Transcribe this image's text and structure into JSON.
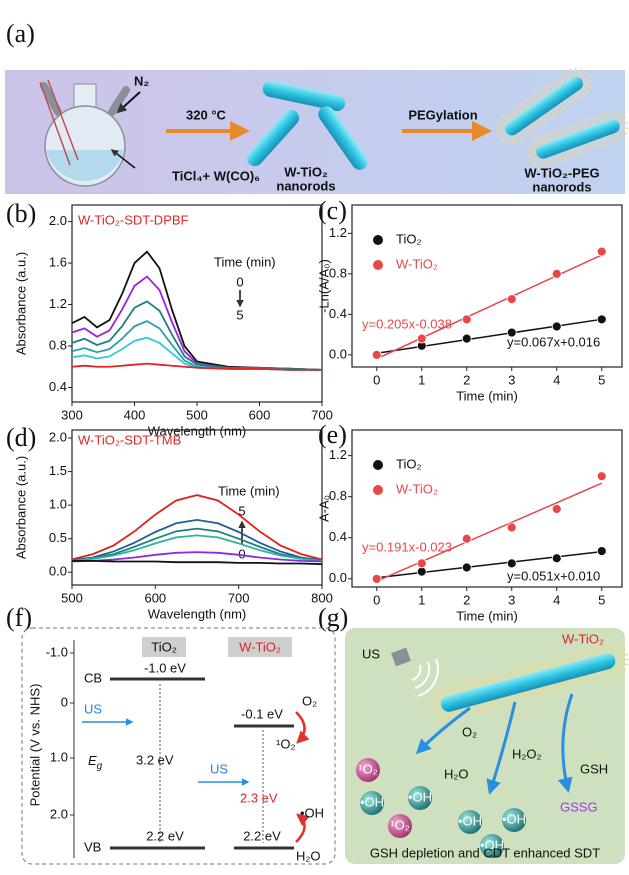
{
  "panel_labels": [
    "(a)",
    "(b)",
    "(c)",
    "(d)",
    "(e)",
    "(f)",
    "(g)"
  ],
  "panel_a": {
    "gas": "N₂",
    "reagents": "TiCl₄+ W(CO)₆",
    "step1": "320 °C",
    "product1": [
      "W-TiO₂",
      "nanorods"
    ],
    "step2": "PEGylation",
    "product2": [
      "W-TiO₂-PEG",
      "nanorods"
    ]
  },
  "chart_data": [
    {
      "type": "line",
      "title": "W-TiO₂-SDT-DPBF",
      "time_label": "Time (min)",
      "time_start": "0",
      "time_end": "5",
      "x_label": "Wavelength (nm)",
      "y_label": "Absorbance (a.u.)",
      "x": [
        300,
        320,
        340,
        360,
        380,
        400,
        420,
        440,
        460,
        480,
        500,
        550,
        600,
        650,
        700
      ],
      "series": [
        {
          "color": "#111111",
          "values": [
            1.02,
            1.08,
            0.98,
            1.05,
            1.3,
            1.6,
            1.71,
            1.55,
            1.15,
            0.8,
            0.65,
            0.6,
            0.59,
            0.58,
            0.57
          ]
        },
        {
          "color": "#9b22e0",
          "values": [
            0.93,
            0.97,
            0.89,
            0.95,
            1.15,
            1.38,
            1.47,
            1.34,
            1.03,
            0.75,
            0.63,
            0.59,
            0.59,
            0.58,
            0.57
          ]
        },
        {
          "color": "#1f7f7a",
          "values": [
            0.83,
            0.87,
            0.81,
            0.85,
            0.99,
            1.17,
            1.23,
            1.14,
            0.91,
            0.7,
            0.62,
            0.59,
            0.58,
            0.58,
            0.57
          ]
        },
        {
          "color": "#2a9fae",
          "values": [
            0.75,
            0.78,
            0.74,
            0.77,
            0.87,
            0.99,
            1.04,
            0.97,
            0.81,
            0.66,
            0.6,
            0.58,
            0.58,
            0.57,
            0.57
          ]
        },
        {
          "color": "#33c8d8",
          "values": [
            0.69,
            0.71,
            0.68,
            0.7,
            0.77,
            0.85,
            0.88,
            0.83,
            0.73,
            0.63,
            0.59,
            0.58,
            0.58,
            0.57,
            0.57
          ]
        },
        {
          "color": "#e02424",
          "values": [
            0.6,
            0.61,
            0.6,
            0.6,
            0.61,
            0.62,
            0.63,
            0.62,
            0.61,
            0.6,
            0.59,
            0.58,
            0.58,
            0.57,
            0.57
          ]
        }
      ],
      "xlim": [
        300,
        700
      ],
      "xticks": [
        300,
        400,
        500,
        600,
        700
      ],
      "ylim": [
        0.26,
        2.16
      ],
      "yticks": [
        0.4,
        0.8,
        1.2,
        1.6,
        {
          "value": 2,
          "label": "2.0"
        }
      ]
    },
    {
      "type": "scatter",
      "x_label": "Time (min)",
      "y_label": "-Ln(A/A₀)",
      "x": [
        0,
        1,
        2,
        3,
        4,
        5
      ],
      "series": [
        {
          "name": "TiO₂",
          "color": "#111111",
          "values": [
            0,
            0.09,
            0.16,
            0.22,
            0.28,
            0.35
          ],
          "fit": {
            "slope": 0.067,
            "intercept": 0.016
          },
          "fit_label": "y=0.067x+0.016"
        },
        {
          "name": "W-TiO₂",
          "color": "#e8474a",
          "values": [
            0,
            0.16,
            0.35,
            0.55,
            0.8,
            1.02
          ],
          "fit": {
            "slope": 0.205,
            "intercept": -0.038
          },
          "fit_label": "y=0.205x-0.038"
        }
      ],
      "xlim": [
        -0.55,
        5.45
      ],
      "xticks": [
        0,
        1,
        2,
        3,
        4,
        5
      ],
      "ylim": [
        -0.12,
        1.48
      ],
      "yticks": [
        {
          "value": 0,
          "label": "0.0"
        },
        0.4,
        0.8,
        1.2
      ]
    },
    {
      "type": "line",
      "title": "W-TiO₂-SDT-TMB",
      "time_label": "Time (min)",
      "time_start": "0",
      "time_end": "5",
      "x_label": "Wavelength (nm)",
      "y_label": "Absorbance (a.u.)",
      "x": [
        500,
        525,
        550,
        575,
        600,
        625,
        650,
        675,
        700,
        725,
        750,
        775,
        800
      ],
      "series": [
        {
          "color": "#e0201a",
          "values": [
            0.19,
            0.27,
            0.4,
            0.61,
            0.86,
            1.07,
            1.15,
            1.07,
            0.86,
            0.61,
            0.4,
            0.27,
            0.19
          ]
        },
        {
          "color": "#1f5f9a",
          "values": [
            0.18,
            0.22,
            0.31,
            0.44,
            0.6,
            0.73,
            0.78,
            0.73,
            0.6,
            0.44,
            0.31,
            0.22,
            0.18
          ]
        },
        {
          "color": "#1f7f7a",
          "values": [
            0.17,
            0.21,
            0.27,
            0.38,
            0.5,
            0.61,
            0.65,
            0.61,
            0.5,
            0.38,
            0.27,
            0.21,
            0.17
          ]
        },
        {
          "color": "#2fb2a2",
          "values": [
            0.17,
            0.2,
            0.25,
            0.33,
            0.43,
            0.52,
            0.55,
            0.52,
            0.43,
            0.33,
            0.25,
            0.2,
            0.17
          ]
        },
        {
          "color": "#8a2be2",
          "values": [
            0.16,
            0.17,
            0.19,
            0.22,
            0.26,
            0.29,
            0.3,
            0.29,
            0.26,
            0.22,
            0.19,
            0.17,
            0.16
          ]
        },
        {
          "color": "#111111",
          "values": [
            0.17,
            0.17,
            0.16,
            0.16,
            0.16,
            0.15,
            0.15,
            0.15,
            0.14,
            0.14,
            0.13,
            0.13,
            0.12
          ]
        }
      ],
      "xlim": [
        500,
        800
      ],
      "xticks": [
        500,
        600,
        700,
        800
      ],
      "ylim": [
        -0.19,
        2.12
      ],
      "yticks": [
        {
          "value": 0,
          "label": "0.0"
        },
        0.5,
        {
          "value": 1,
          "label": "1.0"
        },
        1.5,
        {
          "value": 2,
          "label": "2.0"
        }
      ]
    },
    {
      "type": "scatter",
      "x_label": "Time (min)",
      "y_label": "A-A₀",
      "x": [
        0,
        1,
        2,
        3,
        4,
        5
      ],
      "series": [
        {
          "name": "TiO₂",
          "color": "#111111",
          "values": [
            0,
            0.07,
            0.11,
            0.15,
            0.2,
            0.27
          ],
          "fit": {
            "slope": 0.051,
            "intercept": 0.01
          },
          "fit_label": "y=0.051x+0.010"
        },
        {
          "name": "W-TiO₂",
          "color": "#e8474a",
          "values": [
            0,
            0.15,
            0.39,
            0.5,
            0.68,
            1.0
          ],
          "fit": {
            "slope": 0.191,
            "intercept": -0.023
          },
          "fit_label": "y=0.191x-0.023"
        }
      ],
      "xlim": [
        -0.55,
        5.45
      ],
      "xticks": [
        0,
        1,
        2,
        3,
        4,
        5
      ],
      "ylim": [
        -0.08,
        1.45
      ],
      "yticks": [
        {
          "value": 0,
          "label": "0.0"
        },
        0.4,
        0.8,
        1.2
      ]
    }
  ],
  "panel_f": {
    "axis_title": "Potential (V vs. NHS)",
    "axis_ticks": [
      "-1.0",
      "0",
      "1.0",
      "2.0"
    ],
    "tio2": {
      "header": "TiO₂",
      "cb": "CB",
      "cb_level": "-1.0 eV",
      "us": "US",
      "gap_symbol": "E",
      "gap_subscript": "g",
      "gap": "3.2 eV",
      "vb": "VB",
      "vb_level": "2.2 eV"
    },
    "wtio2": {
      "header": "W-TiO₂",
      "cb_level": "-0.1 eV",
      "o2": "O₂",
      "singlet": "¹O₂",
      "us": "US",
      "gap": "2.3 eV",
      "oh": "•OH",
      "vb_level": "2.2 eV",
      "h2o": "H₂O"
    }
  },
  "panel_g": {
    "us": "US",
    "material": "W-TiO₂",
    "o2": "O₂",
    "h2o": "H₂O",
    "h2o2": "H₂O₂",
    "gsh": "GSH",
    "gssg": "GSSG",
    "spheres": [
      "¹O₂",
      "•OH",
      "•OH",
      "¹O₂",
      "•OH",
      "•OH",
      "•OH"
    ],
    "caption": "GSH depletion and CDT enhanced SDT"
  }
}
